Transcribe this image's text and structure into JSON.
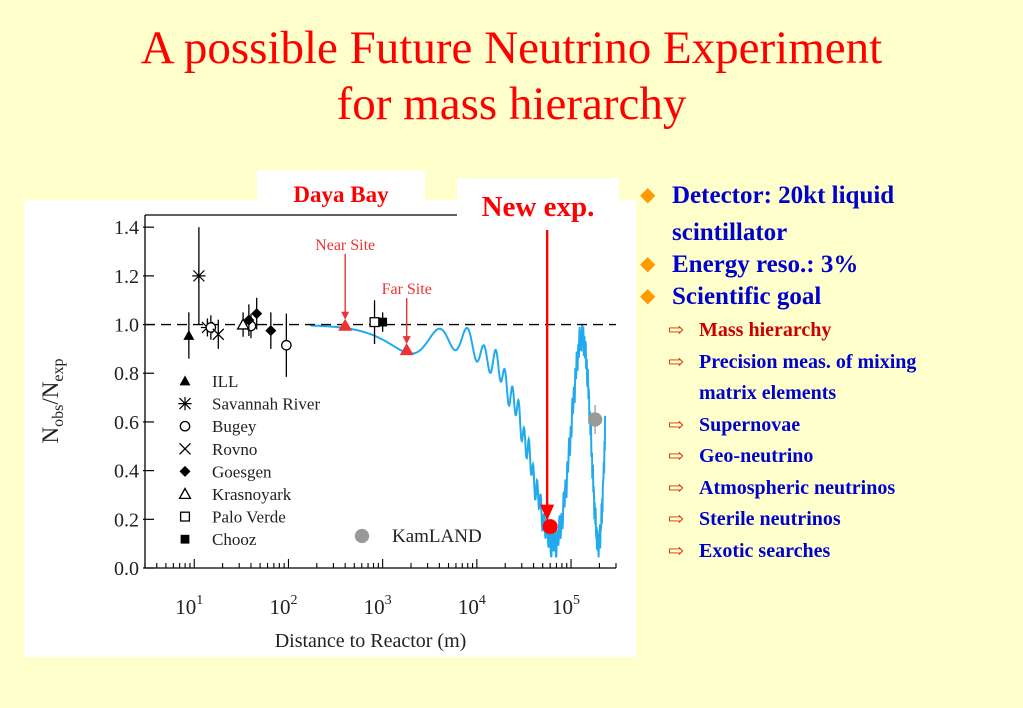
{
  "slide": {
    "title_line1": "A possible Future Neutrino Experiment",
    "title_line2": "for mass hierarchy",
    "callouts": {
      "daya_bay": "Daya Bay",
      "new_exp": "New exp."
    },
    "bullets": [
      {
        "text_line1": "Detector: 20kt liquid",
        "text_line2": "scintillator"
      },
      {
        "text": "Energy reso.: 3%"
      },
      {
        "text": "Scientific goal"
      }
    ],
    "subbullets": [
      {
        "text": "Mass hierarchy",
        "color": "#cc0000"
      },
      {
        "text_line1": "Precision meas. of mixing",
        "text_line2": "matrix elements"
      },
      {
        "text": "Supernovae"
      },
      {
        "text": "Geo-neutrino"
      },
      {
        "text": "Atmospheric neutrinos"
      },
      {
        "text": "Sterile neutrinos"
      },
      {
        "text": "Exotic searches"
      }
    ],
    "colors": {
      "title": "#ff0000",
      "bullet_text": "#0000cc",
      "bullet_marker": "#ff9900",
      "background": "#ffffcc"
    }
  },
  "chart_data": {
    "type": "scatter",
    "xlabel": "Distance to Reactor (m)",
    "ylabel": "N_obs/N_exp",
    "ylabel_main": "N",
    "ylabel_sub1": "obs",
    "ylabel_mid": "/N",
    "ylabel_sub2": "exp",
    "xscale": "log",
    "xlim": [
      3,
      300000
    ],
    "ylim": [
      0,
      1.45
    ],
    "yticks": [
      "0.0",
      "0.2",
      "0.4",
      "0.6",
      "0.8",
      "1.0",
      "1.2",
      "1.4"
    ],
    "ytick_values": [
      0,
      0.2,
      0.4,
      0.6,
      0.8,
      1.0,
      1.2,
      1.4
    ],
    "xtick_values": [
      10,
      100,
      1000,
      10000,
      100000
    ],
    "xtick_base": "10",
    "xtick_exps": [
      "1",
      "2",
      "3",
      "4",
      "5"
    ],
    "reference_line": 1.0,
    "legend_position": "bottom-left",
    "series": [
      {
        "name": "ILL",
        "marker": "filled-triangle",
        "points": [
          {
            "x": 8.76,
            "y": 0.955,
            "err": 0.095
          }
        ]
      },
      {
        "name": "Savannah River",
        "marker": "asterisk",
        "points": [
          {
            "x": 11.2,
            "y": 1.2,
            "err": 0.2
          },
          {
            "x": 13.8,
            "y": 0.988,
            "err": 0.037
          }
        ]
      },
      {
        "name": "Bugey",
        "marker": "open-circle",
        "points": [
          {
            "x": 15,
            "y": 0.988,
            "err": 0.05
          },
          {
            "x": 40,
            "y": 0.994,
            "err": 0.05
          },
          {
            "x": 95,
            "y": 0.915,
            "err": 0.13
          }
        ]
      },
      {
        "name": "Rovno",
        "marker": "cross",
        "points": [
          {
            "x": 18,
            "y": 0.96,
            "err": 0.06
          }
        ]
      },
      {
        "name": "Goesgen",
        "marker": "filled-diamond",
        "points": [
          {
            "x": 38,
            "y": 1.018,
            "err": 0.065
          },
          {
            "x": 46,
            "y": 1.045,
            "err": 0.065
          },
          {
            "x": 65,
            "y": 0.975,
            "err": 0.075
          }
        ]
      },
      {
        "name": "Krasnoyark",
        "marker": "open-triangle",
        "points": [
          {
            "x": 33,
            "y": 1.0,
            "err": 0.05
          }
        ]
      },
      {
        "name": "Palo Verde",
        "marker": "open-square",
        "points": [
          {
            "x": 820,
            "y": 1.01,
            "err": 0.09
          }
        ]
      },
      {
        "name": "Chooz",
        "marker": "filled-square",
        "points": [
          {
            "x": 1000,
            "y": 1.01,
            "err": 0.04
          }
        ]
      },
      {
        "name": "KamLAND",
        "marker": "gray-circle",
        "points": [
          {
            "x": 180000,
            "y": 0.61,
            "err": 0.06
          }
        ]
      }
    ],
    "annotations": [
      {
        "text": "Near Site",
        "x": 400,
        "y": 0.995,
        "color": "#ee3333"
      },
      {
        "text": "Far Site",
        "x": 1800,
        "y": 0.895,
        "color": "#ee3333"
      },
      {
        "text": "New exp.",
        "x": 60000,
        "y": 0.17,
        "color": "#ff0000"
      }
    ],
    "curve_color": "#22aaee"
  }
}
